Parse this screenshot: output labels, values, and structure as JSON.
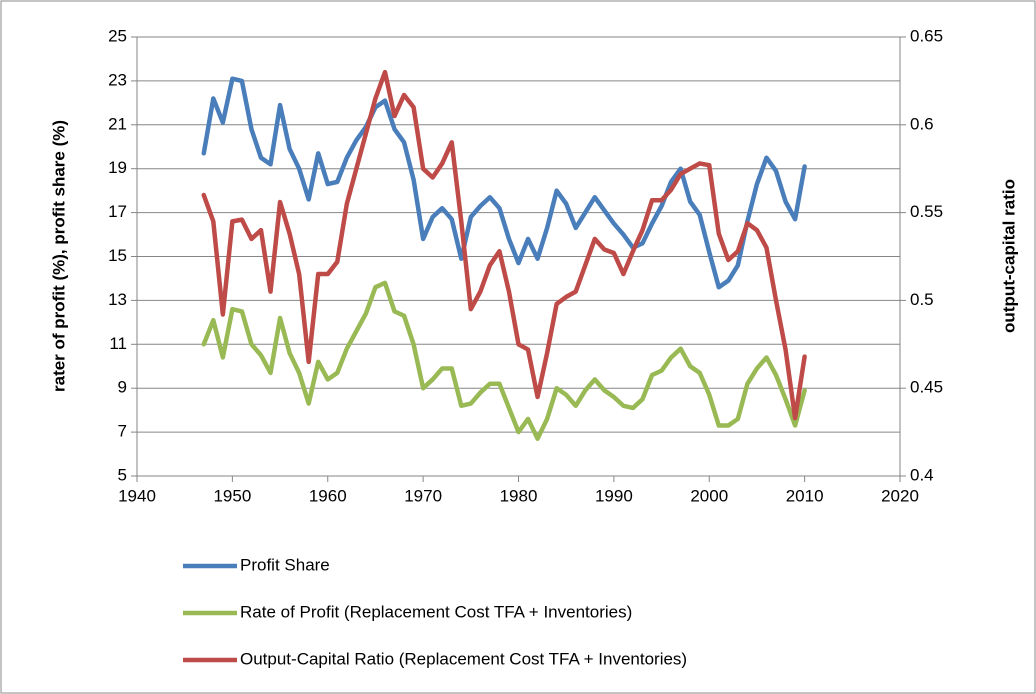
{
  "chart_data": {
    "type": "line",
    "y_label": "rater of profit (%), profit share (%)",
    "y2_label": "output-capital ratio",
    "x": [
      1947,
      1948,
      1949,
      1950,
      1951,
      1952,
      1953,
      1954,
      1955,
      1956,
      1957,
      1958,
      1959,
      1960,
      1961,
      1962,
      1963,
      1964,
      1965,
      1966,
      1967,
      1968,
      1969,
      1970,
      1971,
      1972,
      1973,
      1974,
      1975,
      1976,
      1977,
      1978,
      1979,
      1980,
      1981,
      1982,
      1983,
      1984,
      1985,
      1986,
      1987,
      1988,
      1989,
      1990,
      1991,
      1992,
      1993,
      1994,
      1995,
      1996,
      1997,
      1998,
      1999,
      2000,
      2001,
      2002,
      2003,
      2004,
      2005,
      2006,
      2007,
      2008,
      2009,
      2010
    ],
    "xlim": [
      1940,
      2020
    ],
    "xticks": [
      1940,
      1950,
      1960,
      1970,
      1980,
      1990,
      2000,
      2010,
      2020
    ],
    "ylim": [
      5,
      25
    ],
    "yticks": [
      5,
      7,
      9,
      11,
      13,
      15,
      17,
      19,
      21,
      23,
      25
    ],
    "y2lim": [
      0.4,
      0.65
    ],
    "y2ticks": [
      0.4,
      0.45,
      0.5,
      0.55,
      0.6,
      0.65
    ],
    "grid": true,
    "legend": "bottom",
    "series": [
      {
        "name": "Profit Share",
        "color": "#4a7ebb",
        "values": [
          19.7,
          22.2,
          21.1,
          23.1,
          23.0,
          20.8,
          19.5,
          19.2,
          21.9,
          19.9,
          19.0,
          17.6,
          19.7,
          18.3,
          18.4,
          19.5,
          20.3,
          20.9,
          21.8,
          22.1,
          20.8,
          20.2,
          18.5,
          15.8,
          16.8,
          17.2,
          16.7,
          14.9,
          16.8,
          17.3,
          17.7,
          17.2,
          15.8,
          14.7,
          15.8,
          14.9,
          16.3,
          18.0,
          17.4,
          16.3,
          17.0,
          17.7,
          17.1,
          16.5,
          16.0,
          15.4,
          15.6,
          16.5,
          17.3,
          18.4,
          19.0,
          17.5,
          16.9,
          15.2,
          13.6,
          13.9,
          14.6,
          16.6,
          18.3,
          19.5,
          18.9,
          17.5,
          16.7,
          19.1
        ]
      },
      {
        "name": "Rate of Profit (Replacement Cost TFA + Inventories)",
        "color": "#98b954",
        "values": [
          11.0,
          12.1,
          10.4,
          12.6,
          12.5,
          11.0,
          10.5,
          9.7,
          12.2,
          10.6,
          9.7,
          8.3,
          10.2,
          9.4,
          9.7,
          10.8,
          11.6,
          12.4,
          13.6,
          13.8,
          12.5,
          12.3,
          11.0,
          9.0,
          9.4,
          9.9,
          9.9,
          8.2,
          8.3,
          8.8,
          9.2,
          9.2,
          8.1,
          7.0,
          7.6,
          6.7,
          7.6,
          9.0,
          8.7,
          8.2,
          8.9,
          9.4,
          8.9,
          8.6,
          8.2,
          8.1,
          8.5,
          9.6,
          9.8,
          10.4,
          10.8,
          10.0,
          9.7,
          8.7,
          7.3,
          7.3,
          7.6,
          9.2,
          9.9,
          10.4,
          9.6,
          8.5,
          7.3,
          8.9
        ]
      },
      {
        "name": "Output-Capital Ratio (Replacement Cost TFA + Inventories)",
        "color": "#be4b48",
        "axis": "y2",
        "values": [
          0.56,
          0.545,
          0.492,
          0.545,
          0.546,
          0.535,
          0.54,
          0.505,
          0.556,
          0.538,
          0.515,
          0.465,
          0.515,
          0.515,
          0.522,
          0.555,
          0.575,
          0.595,
          0.615,
          0.63,
          0.605,
          0.617,
          0.61,
          0.575,
          0.57,
          0.578,
          0.59,
          0.545,
          0.495,
          0.505,
          0.52,
          0.528,
          0.505,
          0.475,
          0.472,
          0.445,
          0.47,
          0.498,
          0.502,
          0.505,
          0.52,
          0.535,
          0.529,
          0.527,
          0.515,
          0.528,
          0.54,
          0.557,
          0.557,
          0.563,
          0.572,
          0.575,
          0.578,
          0.577,
          0.538,
          0.523,
          0.528,
          0.544,
          0.54,
          0.53,
          0.5,
          0.472,
          0.433,
          0.468
        ]
      }
    ]
  }
}
